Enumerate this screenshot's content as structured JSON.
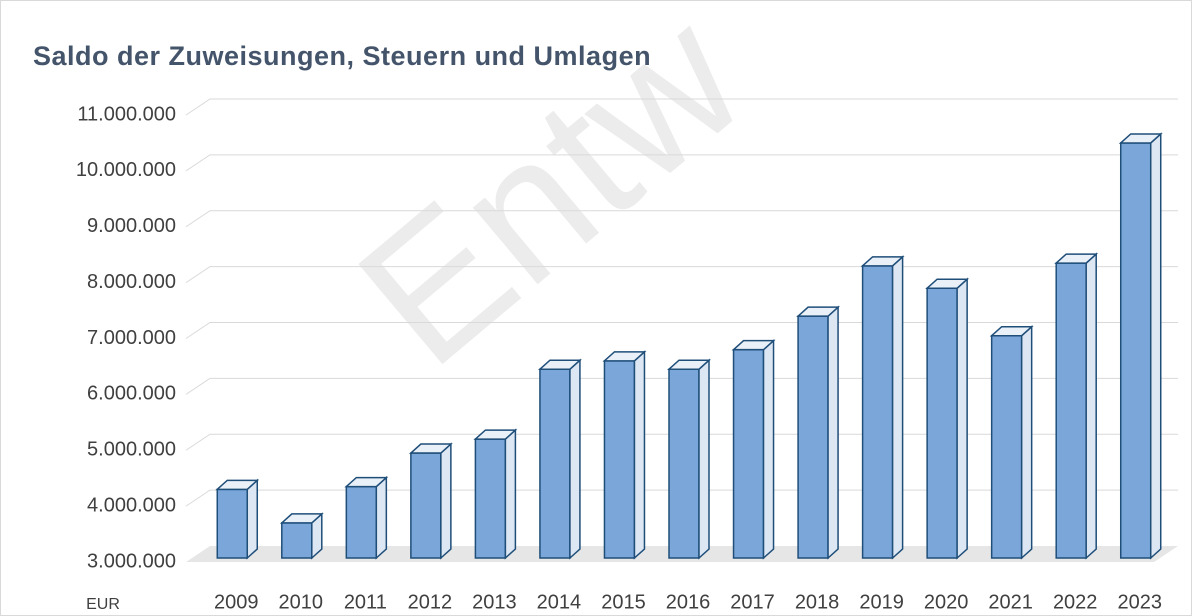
{
  "chart_data": {
    "type": "bar3d",
    "title": "Saldo der Zuweisungen, Steuern und Umlagen",
    "watermark": "Entw",
    "y_axis_label": "EUR",
    "categories": [
      "2009",
      "2010",
      "2011",
      "2012",
      "2013",
      "2014",
      "2015",
      "2016",
      "2017",
      "2018",
      "2019",
      "2020",
      "2021",
      "2022",
      "2023"
    ],
    "values": [
      4300000,
      3700000,
      4350000,
      4950000,
      5200000,
      6450000,
      6600000,
      6450000,
      6800000,
      7400000,
      8300000,
      7900000,
      7050000,
      8350000,
      10500000
    ],
    "color": "#7aa6da",
    "ylim": [
      3000000,
      11000000
    ],
    "yticks": [
      {
        "value": 3000000,
        "label": "3.000.000"
      },
      {
        "value": 4000000,
        "label": "4.000.000"
      },
      {
        "value": 5000000,
        "label": "5.000.000"
      },
      {
        "value": 6000000,
        "label": "6.000.000"
      },
      {
        "value": 7000000,
        "label": "7.000.000"
      },
      {
        "value": 8000000,
        "label": "8.000.000"
      },
      {
        "value": 9000000,
        "label": "9.000.000"
      },
      {
        "value": 10000000,
        "label": "10.000.000"
      },
      {
        "value": 11000000,
        "label": "11.000.000"
      }
    ],
    "grid": true
  }
}
